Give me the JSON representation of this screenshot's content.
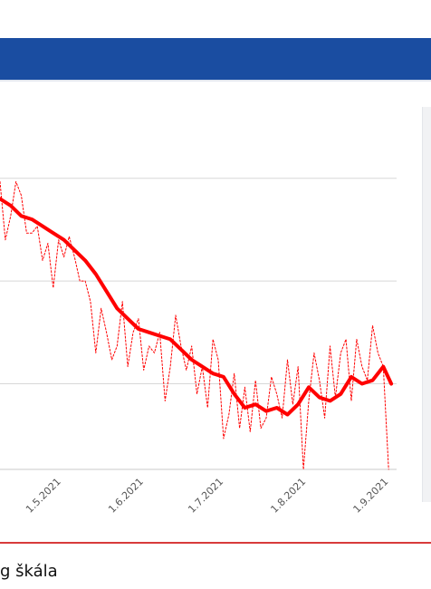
{
  "page": {
    "bottom_caption": "g škála"
  },
  "colors": {
    "header_band": "#1a4da1",
    "series": "#ff0000",
    "gridline": "#d7d7d7",
    "accent_rule": "#d83b3b",
    "side_panel": "#f1f2f4"
  },
  "chart_data": {
    "type": "line",
    "title": "",
    "xlabel": "",
    "ylabel": "",
    "x_ticks": [
      "1.5.2021",
      "1.6.2021",
      "1.7.2021",
      "1.8.2021",
      "1.9.2021"
    ],
    "y_gridlines_relative": [
      0.25,
      0.55,
      0.85
    ],
    "grid": "horizontal",
    "note_values": "relative level 0–1 (axis values not visible)",
    "series": [
      {
        "role": "daily",
        "style": "thin dashed",
        "x": [
          "2021-04-10",
          "2021-04-12",
          "2021-04-14",
          "2021-04-16",
          "2021-04-18",
          "2021-04-20",
          "2021-04-22",
          "2021-04-24",
          "2021-04-26",
          "2021-04-28",
          "2021-04-30",
          "2021-05-02",
          "2021-05-04",
          "2021-05-06",
          "2021-05-08",
          "2021-05-10",
          "2021-05-12",
          "2021-05-14",
          "2021-05-16",
          "2021-05-18",
          "2021-05-20",
          "2021-05-22",
          "2021-05-24",
          "2021-05-26",
          "2021-05-28",
          "2021-05-30",
          "2021-06-01",
          "2021-06-03",
          "2021-06-05",
          "2021-06-07",
          "2021-06-09",
          "2021-06-11",
          "2021-06-13",
          "2021-06-15",
          "2021-06-17",
          "2021-06-19",
          "2021-06-21",
          "2021-06-23",
          "2021-06-25",
          "2021-06-27",
          "2021-06-29",
          "2021-07-01",
          "2021-07-03",
          "2021-07-05",
          "2021-07-07",
          "2021-07-09",
          "2021-07-11",
          "2021-07-13",
          "2021-07-15",
          "2021-07-17",
          "2021-07-19",
          "2021-07-21",
          "2021-07-23",
          "2021-07-25",
          "2021-07-27",
          "2021-07-29",
          "2021-07-31",
          "2021-08-02",
          "2021-08-04",
          "2021-08-06",
          "2021-08-08",
          "2021-08-10",
          "2021-08-12",
          "2021-08-14",
          "2021-08-16",
          "2021-08-18",
          "2021-08-20",
          "2021-08-22",
          "2021-08-24",
          "2021-08-26",
          "2021-08-28",
          "2021-08-30",
          "2021-09-01",
          "2021-09-03"
        ],
        "values": [
          0.84,
          0.67,
          0.74,
          0.84,
          0.8,
          0.69,
          0.69,
          0.71,
          0.61,
          0.66,
          0.53,
          0.67,
          0.62,
          0.68,
          0.62,
          0.55,
          0.55,
          0.49,
          0.34,
          0.47,
          0.4,
          0.32,
          0.36,
          0.49,
          0.3,
          0.4,
          0.44,
          0.29,
          0.36,
          0.34,
          0.4,
          0.2,
          0.3,
          0.45,
          0.36,
          0.29,
          0.36,
          0.22,
          0.3,
          0.18,
          0.38,
          0.32,
          0.09,
          0.16,
          0.28,
          0.12,
          0.24,
          0.11,
          0.26,
          0.12,
          0.15,
          0.27,
          0.22,
          0.15,
          0.32,
          0.19,
          0.3,
          0.0,
          0.2,
          0.34,
          0.26,
          0.15,
          0.36,
          0.21,
          0.34,
          0.38,
          0.2,
          0.38,
          0.3,
          0.26,
          0.42,
          0.34,
          0.3,
          0.0
        ]
      },
      {
        "role": "7-day average",
        "style": "thick solid",
        "x": [
          "2021-04-10",
          "2021-04-14",
          "2021-04-18",
          "2021-04-22",
          "2021-04-26",
          "2021-04-30",
          "2021-05-04",
          "2021-05-08",
          "2021-05-12",
          "2021-05-16",
          "2021-05-20",
          "2021-05-24",
          "2021-05-28",
          "2021-06-01",
          "2021-06-05",
          "2021-06-09",
          "2021-06-13",
          "2021-06-17",
          "2021-06-21",
          "2021-06-25",
          "2021-06-29",
          "2021-07-03",
          "2021-07-07",
          "2021-07-11",
          "2021-07-15",
          "2021-07-19",
          "2021-07-23",
          "2021-07-27",
          "2021-07-31",
          "2021-08-04",
          "2021-08-08",
          "2021-08-12",
          "2021-08-16",
          "2021-08-20",
          "2021-08-24",
          "2021-08-28",
          "2021-09-01",
          "2021-09-04"
        ],
        "values": [
          0.79,
          0.77,
          0.74,
          0.73,
          0.71,
          0.69,
          0.67,
          0.64,
          0.61,
          0.57,
          0.52,
          0.47,
          0.44,
          0.41,
          0.4,
          0.39,
          0.38,
          0.35,
          0.32,
          0.3,
          0.28,
          0.27,
          0.22,
          0.18,
          0.19,
          0.17,
          0.18,
          0.16,
          0.19,
          0.24,
          0.21,
          0.2,
          0.22,
          0.27,
          0.25,
          0.26,
          0.3,
          0.25
        ]
      }
    ]
  }
}
